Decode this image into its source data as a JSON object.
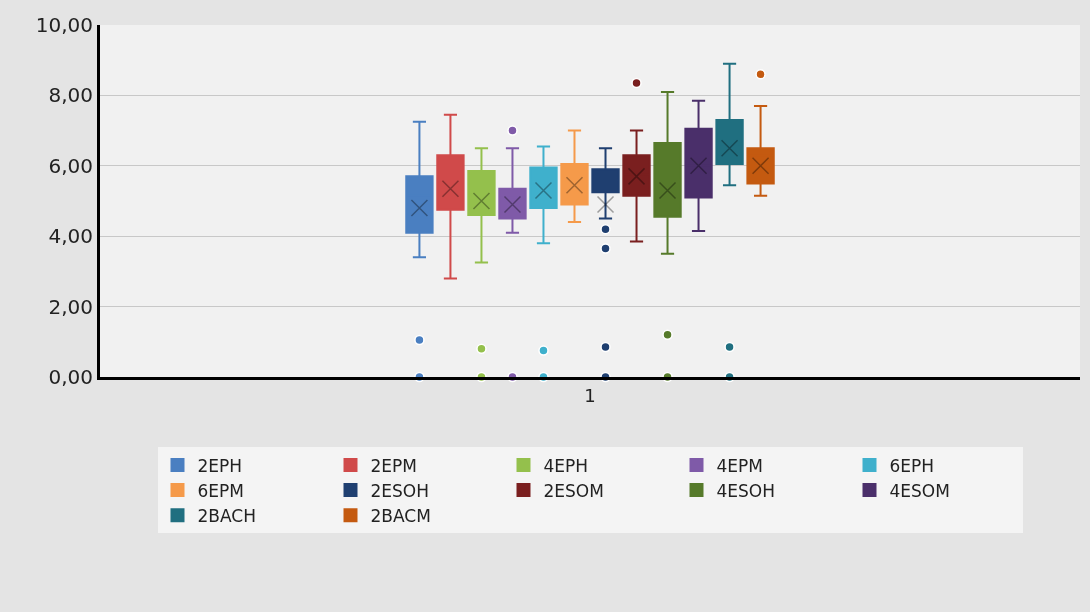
{
  "chart_data": {
    "type": "box",
    "categories": [
      "1"
    ],
    "ylim": [
      0,
      10
    ],
    "yticks": [
      {
        "value": 0,
        "label": "0,00"
      },
      {
        "value": 2,
        "label": "2,00"
      },
      {
        "value": 4,
        "label": "4,00"
      },
      {
        "value": 6,
        "label": "6,00"
      },
      {
        "value": 8,
        "label": "8,00"
      },
      {
        "value": 10,
        "label": "10,00"
      }
    ],
    "grid": "y",
    "legend": "bottom",
    "series": [
      {
        "name": "2EPH",
        "color": "#4a7fc1",
        "boxes": [
          {
            "low": 3.4,
            "q1": 4.1,
            "median": 5.15,
            "q3": 5.7,
            "high": 7.25,
            "mean": 4.8,
            "outliers": [
              1.05,
              0
            ]
          }
        ]
      },
      {
        "name": "2EPM",
        "color": "#d04a4a",
        "boxes": [
          {
            "low": 2.8,
            "q1": 4.75,
            "median": 5.6,
            "q3": 6.3,
            "high": 7.45,
            "mean": 5.35
          }
        ]
      },
      {
        "name": "4EPH",
        "color": "#94c04c",
        "boxes": [
          {
            "low": 3.25,
            "q1": 4.6,
            "median": 5.3,
            "q3": 5.85,
            "high": 6.5,
            "mean": 5.0,
            "outliers": [
              0.8,
              0
            ]
          }
        ]
      },
      {
        "name": "4EPM",
        "color": "#7f5aa8",
        "boxes": [
          {
            "low": 4.1,
            "q1": 4.5,
            "median": 5.1,
            "q3": 5.35,
            "high": 6.5,
            "mean": 4.9,
            "outliers": [
              7.0,
              0
            ]
          }
        ]
      },
      {
        "name": "6EPH",
        "color": "#3fb0cc",
        "boxes": [
          {
            "low": 3.8,
            "q1": 4.8,
            "median": 5.45,
            "q3": 5.95,
            "high": 6.55,
            "mean": 5.3,
            "outliers": [
              0.75,
              0
            ]
          }
        ]
      },
      {
        "name": "6EPM",
        "color": "#f59a4a",
        "boxes": [
          {
            "low": 4.4,
            "q1": 4.9,
            "median": 5.5,
            "q3": 6.05,
            "high": 7.0,
            "mean": 5.45
          }
        ]
      },
      {
        "name": "2ESOH",
        "color": "#1f3f70",
        "boxes": [
          {
            "low": 4.5,
            "q1": 5.25,
            "median": 5.6,
            "q3": 5.9,
            "high": 6.5,
            "mean": 4.9,
            "outliers": [
              4.2,
              3.65,
              0.85,
              0
            ]
          }
        ]
      },
      {
        "name": "2ESOM",
        "color": "#7a1f1f",
        "boxes": [
          {
            "low": 3.85,
            "q1": 5.15,
            "median": 5.75,
            "q3": 6.3,
            "high": 7.0,
            "mean": 5.7,
            "outliers": [
              8.35
            ]
          }
        ]
      },
      {
        "name": "4ESOH",
        "color": "#567a2a",
        "boxes": [
          {
            "low": 3.5,
            "q1": 4.55,
            "median": 5.6,
            "q3": 6.65,
            "high": 8.1,
            "mean": 5.3,
            "outliers": [
              1.2,
              0
            ]
          }
        ]
      },
      {
        "name": "4ESOM",
        "color": "#4a2f6a",
        "boxes": [
          {
            "low": 4.15,
            "q1": 5.1,
            "median": 6.0,
            "q3": 7.05,
            "high": 7.85,
            "mean": 6.0
          }
        ]
      },
      {
        "name": "2BACH",
        "color": "#206f80",
        "boxes": [
          {
            "low": 5.45,
            "q1": 6.05,
            "median": 6.6,
            "q3": 7.3,
            "high": 8.9,
            "mean": 6.5,
            "outliers": [
              0.85,
              0
            ]
          }
        ]
      },
      {
        "name": "2BACM",
        "color": "#c45a10",
        "boxes": [
          {
            "low": 5.15,
            "q1": 5.5,
            "median": 6.3,
            "q3": 6.5,
            "high": 7.7,
            "mean": 6.0,
            "outliers": [
              8.6
            ]
          }
        ]
      }
    ]
  }
}
